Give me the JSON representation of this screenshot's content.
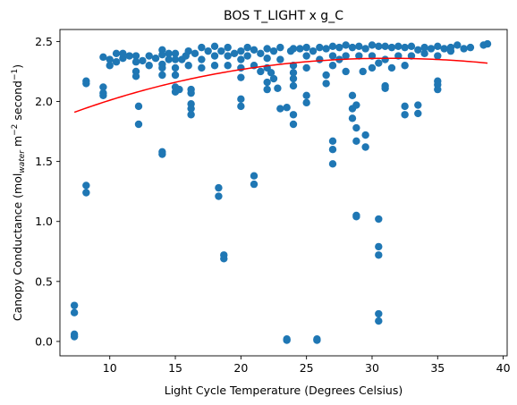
{
  "chart_data": {
    "type": "scatter",
    "title": "BOS T_LIGHT x g_C",
    "xlabel": "Light Cycle Temperature (Degrees Celsius)",
    "ylabel": {
      "prefix": "Canopy Conductance (mol",
      "sub": "water",
      "mid": " m",
      "sup1": "−2",
      "mid2": " second",
      "sup2": "−1",
      "suffix": ")"
    },
    "xlim": [
      6.2,
      40.3
    ],
    "ylim": [
      -0.12,
      2.6
    ],
    "xticks": [
      10,
      15,
      20,
      25,
      30,
      35,
      40
    ],
    "xtick_labels": [
      "10",
      "15",
      "20",
      "25",
      "30",
      "35",
      "40"
    ],
    "yticks": [
      0.0,
      0.5,
      1.0,
      1.5,
      2.0,
      2.5
    ],
    "ytick_labels": [
      "0.0",
      "0.5",
      "1.0",
      "1.5",
      "2.0",
      "2.5"
    ],
    "point_color": "#1f77b4",
    "fit_color": "#ff0000",
    "grid": false,
    "series": [
      {
        "values": [
          [
            7.3,
            0.3
          ],
          [
            7.3,
            0.24
          ],
          [
            7.3,
            0.06
          ],
          [
            7.3,
            0.04
          ],
          [
            8.2,
            2.17
          ],
          [
            8.2,
            2.15
          ],
          [
            8.2,
            1.3
          ],
          [
            8.2,
            1.24
          ],
          [
            9.5,
            2.37
          ],
          [
            9.5,
            2.12
          ],
          [
            9.5,
            2.07
          ],
          [
            9.5,
            2.05
          ],
          [
            10.0,
            2.35
          ],
          [
            10.0,
            2.3
          ],
          [
            10.5,
            2.4
          ],
          [
            10.5,
            2.33
          ],
          [
            11.0,
            2.36
          ],
          [
            11.0,
            2.4
          ],
          [
            11.5,
            2.38
          ],
          [
            12.0,
            2.38
          ],
          [
            12.0,
            2.33
          ],
          [
            12.0,
            2.25
          ],
          [
            12.0,
            2.21
          ],
          [
            12.2,
            1.96
          ],
          [
            12.2,
            1.81
          ],
          [
            12.5,
            2.34
          ],
          [
            13.0,
            2.38
          ],
          [
            13.0,
            2.3
          ],
          [
            13.5,
            2.36
          ],
          [
            14.0,
            2.43
          ],
          [
            14.0,
            2.39
          ],
          [
            14.0,
            2.31
          ],
          [
            14.0,
            2.28
          ],
          [
            14.0,
            2.22
          ],
          [
            14.0,
            1.58
          ],
          [
            14.0,
            1.56
          ],
          [
            14.5,
            2.35
          ],
          [
            14.5,
            2.4
          ],
          [
            15.0,
            2.4
          ],
          [
            15.0,
            2.35
          ],
          [
            15.0,
            2.28
          ],
          [
            15.0,
            2.22
          ],
          [
            15.0,
            2.12
          ],
          [
            15.0,
            2.08
          ],
          [
            15.3,
            2.1
          ],
          [
            15.5,
            2.35
          ],
          [
            15.8,
            2.38
          ],
          [
            16.0,
            2.42
          ],
          [
            16.0,
            2.3
          ],
          [
            16.2,
            2.1
          ],
          [
            16.2,
            2.07
          ],
          [
            16.2,
            1.98
          ],
          [
            16.2,
            1.94
          ],
          [
            16.2,
            1.89
          ],
          [
            16.5,
            2.4
          ],
          [
            17.0,
            2.45
          ],
          [
            17.0,
            2.35
          ],
          [
            17.0,
            2.28
          ],
          [
            17.5,
            2.42
          ],
          [
            18.0,
            2.46
          ],
          [
            18.0,
            2.38
          ],
          [
            18.0,
            2.3
          ],
          [
            18.3,
            1.28
          ],
          [
            18.3,
            1.21
          ],
          [
            18.5,
            2.42
          ],
          [
            18.7,
            0.72
          ],
          [
            18.7,
            0.69
          ],
          [
            19.0,
            2.45
          ],
          [
            19.0,
            2.38
          ],
          [
            19.0,
            2.3
          ],
          [
            19.5,
            2.4
          ],
          [
            20.0,
            2.42
          ],
          [
            20.0,
            2.35
          ],
          [
            20.0,
            2.28
          ],
          [
            20.0,
            2.2
          ],
          [
            20.0,
            2.02
          ],
          [
            20.0,
            1.96
          ],
          [
            20.5,
            2.45
          ],
          [
            20.5,
            2.38
          ],
          [
            21.0,
            2.43
          ],
          [
            21.0,
            2.3
          ],
          [
            21.0,
            1.38
          ],
          [
            21.0,
            1.31
          ],
          [
            21.5,
            2.4
          ],
          [
            21.5,
            2.25
          ],
          [
            22.0,
            2.44
          ],
          [
            22.0,
            2.36
          ],
          [
            22.0,
            2.28
          ],
          [
            22.0,
            2.16
          ],
          [
            22.0,
            2.1
          ],
          [
            22.3,
            2.24
          ],
          [
            22.5,
            2.42
          ],
          [
            22.5,
            2.19
          ],
          [
            22.8,
            2.11
          ],
          [
            23.0,
            2.45
          ],
          [
            23.0,
            2.35
          ],
          [
            23.0,
            1.94
          ],
          [
            23.5,
            1.95
          ],
          [
            23.5,
            0.02
          ],
          [
            23.5,
            0.01
          ],
          [
            23.8,
            2.42
          ],
          [
            24.0,
            2.44
          ],
          [
            24.0,
            2.3
          ],
          [
            24.0,
            2.24
          ],
          [
            24.0,
            2.19
          ],
          [
            24.0,
            2.13
          ],
          [
            24.0,
            1.89
          ],
          [
            24.0,
            1.81
          ],
          [
            24.5,
            2.44
          ],
          [
            25.0,
            2.45
          ],
          [
            25.0,
            2.38
          ],
          [
            25.0,
            2.28
          ],
          [
            25.0,
            2.05
          ],
          [
            25.0,
            1.99
          ],
          [
            25.5,
            2.42
          ],
          [
            25.8,
            0.02
          ],
          [
            25.8,
            0.01
          ],
          [
            26.0,
            2.45
          ],
          [
            26.0,
            2.35
          ],
          [
            26.5,
            2.44
          ],
          [
            26.5,
            2.22
          ],
          [
            26.5,
            2.15
          ],
          [
            27.0,
            2.46
          ],
          [
            27.0,
            2.38
          ],
          [
            27.0,
            2.3
          ],
          [
            27.0,
            1.67
          ],
          [
            27.0,
            1.6
          ],
          [
            27.0,
            1.48
          ],
          [
            27.5,
            2.45
          ],
          [
            27.5,
            2.35
          ],
          [
            28.0,
            2.47
          ],
          [
            28.0,
            2.38
          ],
          [
            28.0,
            2.25
          ],
          [
            28.5,
            2.45
          ],
          [
            28.5,
            2.05
          ],
          [
            28.5,
            1.94
          ],
          [
            28.5,
            1.86
          ],
          [
            28.8,
            1.97
          ],
          [
            28.8,
            1.78
          ],
          [
            28.8,
            1.67
          ],
          [
            28.8,
            1.05
          ],
          [
            28.8,
            1.04
          ],
          [
            29.0,
            2.46
          ],
          [
            29.0,
            2.38
          ],
          [
            29.3,
            2.25
          ],
          [
            29.5,
            2.44
          ],
          [
            29.5,
            1.72
          ],
          [
            29.5,
            1.62
          ],
          [
            30.0,
            2.47
          ],
          [
            30.0,
            2.38
          ],
          [
            30.0,
            2.28
          ],
          [
            30.5,
            2.46
          ],
          [
            30.5,
            2.32
          ],
          [
            30.5,
            1.02
          ],
          [
            30.5,
            0.79
          ],
          [
            30.5,
            0.72
          ],
          [
            30.5,
            0.23
          ],
          [
            30.5,
            0.17
          ],
          [
            31.0,
            2.46
          ],
          [
            31.0,
            2.35
          ],
          [
            31.0,
            2.13
          ],
          [
            31.0,
            2.11
          ],
          [
            31.5,
            2.45
          ],
          [
            31.5,
            2.28
          ],
          [
            32.0,
            2.46
          ],
          [
            32.0,
            2.38
          ],
          [
            32.5,
            2.45
          ],
          [
            32.5,
            2.3
          ],
          [
            32.5,
            1.96
          ],
          [
            32.5,
            1.89
          ],
          [
            33.0,
            2.46
          ],
          [
            33.0,
            2.38
          ],
          [
            33.5,
            2.43
          ],
          [
            33.5,
            1.97
          ],
          [
            33.5,
            1.9
          ],
          [
            34.0,
            2.45
          ],
          [
            34.0,
            2.4
          ],
          [
            34.5,
            2.44
          ],
          [
            35.0,
            2.46
          ],
          [
            35.0,
            2.38
          ],
          [
            35.0,
            2.17
          ],
          [
            35.0,
            2.14
          ],
          [
            35.0,
            2.1
          ],
          [
            35.5,
            2.44
          ],
          [
            36.0,
            2.45
          ],
          [
            36.0,
            2.42
          ],
          [
            36.5,
            2.47
          ],
          [
            37.0,
            2.44
          ],
          [
            37.5,
            2.45
          ],
          [
            38.5,
            2.47
          ],
          [
            38.8,
            2.48
          ]
        ]
      }
    ],
    "fit": {
      "type": "quadratic",
      "x_range": [
        7.3,
        38.8
      ],
      "samples": [
        [
          7.3,
          1.91
        ],
        [
          15.0,
          2.16
        ],
        [
          23.0,
          2.31
        ],
        [
          31.5,
          2.36
        ],
        [
          38.8,
          2.32
        ]
      ]
    }
  }
}
